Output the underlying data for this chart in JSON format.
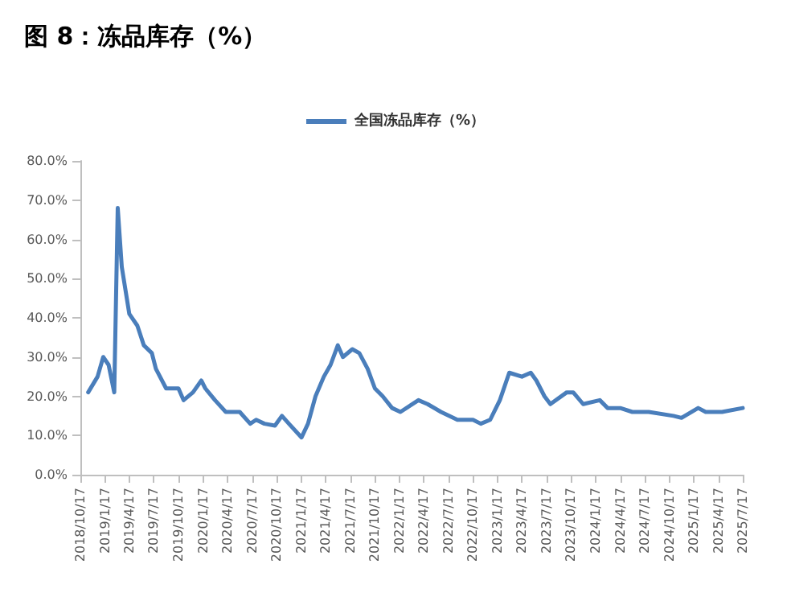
{
  "chart_data": {
    "type": "line",
    "title": "图 8：冻品库存（%）",
    "legend": "top",
    "grid": false,
    "marker": "none",
    "line_style": "solid",
    "x": [
      "2018-11-15",
      "2018-12-20",
      "2019-01-10",
      "2019-01-30",
      "2019-02-20",
      "2019-03-05",
      "2019-03-20",
      "2019-04-17",
      "2019-05-17",
      "2019-06-10",
      "2019-07-10",
      "2019-07-25",
      "2019-09-01",
      "2019-10-17",
      "2019-11-05",
      "2019-12-10",
      "2020-01-10",
      "2020-01-25",
      "2020-03-01",
      "2020-04-10",
      "2020-06-01",
      "2020-07-10",
      "2020-08-01",
      "2020-09-01",
      "2020-10-10",
      "2020-11-05",
      "2020-12-01",
      "2021-01-17",
      "2021-02-10",
      "2021-03-10",
      "2021-04-10",
      "2021-05-05",
      "2021-06-01",
      "2021-06-20",
      "2021-07-25",
      "2021-08-20",
      "2021-09-20",
      "2021-10-17",
      "2021-11-15",
      "2021-12-20",
      "2022-01-20",
      "2022-03-28",
      "2022-05-01",
      "2022-06-20",
      "2022-08-20",
      "2022-10-17",
      "2022-11-15",
      "2022-12-20",
      "2023-01-25",
      "2023-03-01",
      "2023-04-17",
      "2023-05-20",
      "2023-06-10",
      "2023-07-10",
      "2023-08-01",
      "2023-10-01",
      "2023-10-25",
      "2023-12-01",
      "2024-02-01",
      "2024-03-01",
      "2024-04-17",
      "2024-06-01",
      "2024-08-01",
      "2024-11-01",
      "2024-12-01",
      "2025-02-01",
      "2025-03-01",
      "2025-05-01",
      "2025-07-17"
    ],
    "ylim": [
      0,
      80
    ],
    "yticks": [
      {
        "value": 0,
        "label": "0.0%"
      },
      {
        "value": 10,
        "label": "10.0%"
      },
      {
        "value": 20,
        "label": "20.0%"
      },
      {
        "value": 30,
        "label": "30.0%"
      },
      {
        "value": 40,
        "label": "40.0%"
      },
      {
        "value": 50,
        "label": "50.0%"
      },
      {
        "value": 60,
        "label": "60.0%"
      },
      {
        "value": 70,
        "label": "70.0%"
      },
      {
        "value": 80,
        "label": "80.0%"
      }
    ],
    "xlim": [
      "2018-10-17",
      "2025-07-17"
    ],
    "xticks": [
      {
        "value": "2018-10-17",
        "label": "2018/10/17"
      },
      {
        "value": "2019-01-17",
        "label": "2019/1/17"
      },
      {
        "value": "2019-04-17",
        "label": "2019/4/17"
      },
      {
        "value": "2019-07-17",
        "label": "2019/7/17"
      },
      {
        "value": "2019-10-17",
        "label": "2019/10/17"
      },
      {
        "value": "2020-01-17",
        "label": "2020/1/17"
      },
      {
        "value": "2020-04-17",
        "label": "2020/4/17"
      },
      {
        "value": "2020-07-17",
        "label": "2020/7/17"
      },
      {
        "value": "2020-10-17",
        "label": "2020/10/17"
      },
      {
        "value": "2021-01-17",
        "label": "2021/1/17"
      },
      {
        "value": "2021-04-17",
        "label": "2021/4/17"
      },
      {
        "value": "2021-07-17",
        "label": "2021/7/17"
      },
      {
        "value": "2021-10-17",
        "label": "2021/10/17"
      },
      {
        "value": "2022-01-17",
        "label": "2022/1/17"
      },
      {
        "value": "2022-04-17",
        "label": "2022/4/17"
      },
      {
        "value": "2022-07-17",
        "label": "2022/7/17"
      },
      {
        "value": "2022-10-17",
        "label": "2022/10/17"
      },
      {
        "value": "2023-01-17",
        "label": "2023/1/17"
      },
      {
        "value": "2023-04-17",
        "label": "2023/4/17"
      },
      {
        "value": "2023-07-17",
        "label": "2023/7/17"
      },
      {
        "value": "2023-10-17",
        "label": "2023/10/17"
      },
      {
        "value": "2024-01-17",
        "label": "2024/1/17"
      },
      {
        "value": "2024-04-17",
        "label": "2024/4/17"
      },
      {
        "value": "2024-07-17",
        "label": "2024/7/17"
      },
      {
        "value": "2024-10-17",
        "label": "2024/10/17"
      },
      {
        "value": "2025-01-17",
        "label": "2025/1/17"
      },
      {
        "value": "2025-04-17",
        "label": "2025/4/17"
      },
      {
        "value": "2025-07-17",
        "label": "2025/7/17"
      }
    ],
    "series": [
      {
        "name": "全国冻品库存（%）",
        "color": "#4a7ebb",
        "values": [
          21,
          25,
          30,
          28,
          21,
          68,
          53,
          41,
          38,
          33,
          31,
          27,
          22,
          22,
          19,
          21,
          24,
          22,
          19,
          16,
          16,
          13,
          14,
          13,
          12.5,
          15,
          13,
          9.5,
          13,
          20,
          25,
          28,
          33,
          30,
          32,
          31,
          27,
          22,
          20,
          17,
          16,
          19,
          18,
          16,
          14,
          14,
          13,
          14,
          19,
          26,
          25,
          26,
          24,
          20,
          18,
          21,
          21,
          18,
          19,
          17,
          17,
          16,
          16,
          15,
          14.5,
          17,
          16,
          16,
          17
        ]
      }
    ]
  }
}
